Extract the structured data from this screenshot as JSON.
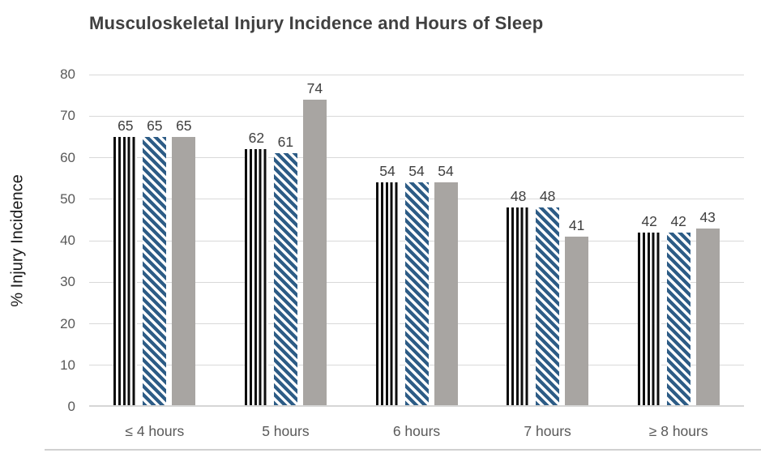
{
  "header": {
    "title": "Musculoskeletal Injury Incidence and Hours of Sleep"
  },
  "chart_data": {
    "type": "bar",
    "title": "Musculoskeletal Injury Incidence and Hours of Sleep",
    "xlabel": "",
    "ylabel": "% Injury Incidence",
    "categories": [
      "≤ 4 hours",
      "5 hours",
      "6 hours",
      "7 hours",
      "≥ 8 hours"
    ],
    "series": [
      {
        "name": "black-vertical-line-pattern",
        "style": "black-vertical-lines",
        "values": [
          65,
          62,
          54,
          48,
          42
        ]
      },
      {
        "name": "blue-diagonal-stripe-pattern",
        "style": "blue-diagonal-stripes",
        "values": [
          65,
          61,
          54,
          48,
          42
        ]
      },
      {
        "name": "gray-solid",
        "style": "gray-solid",
        "values": [
          65,
          74,
          54,
          41,
          43
        ]
      }
    ],
    "ylim": [
      0,
      80
    ],
    "ytick_interval": 10,
    "yticks": [
      0,
      10,
      20,
      30,
      40,
      50,
      60,
      70,
      80
    ],
    "grid": true,
    "legend": false,
    "data_labels": true
  },
  "colors": {
    "background": "#ffffff",
    "title_text": "#404040",
    "axis_tick_text": "#595959",
    "y_axis_title_text": "#1a1a1a",
    "data_label_text": "#404040",
    "gridline": "#d9d9d9",
    "axis_line": "#d6d6d6",
    "pattern_black": "#0d0d0d",
    "pattern_blue": "#2d5c86",
    "bar_gray": "#a8a5a2",
    "bottom_border": "#d0d0d0"
  }
}
